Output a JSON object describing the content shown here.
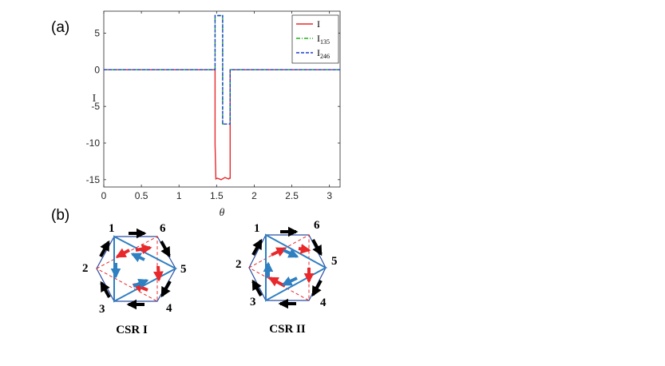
{
  "panel_a_label": "(a)",
  "panel_b_label": "(b)",
  "chart_data": {
    "type": "line",
    "title": "",
    "xlabel": "θ",
    "ylabel": "I",
    "xlim": [
      0,
      3.14159
    ],
    "ylim": [
      -16,
      8
    ],
    "x_ticks": [
      "0",
      "0.5",
      "1",
      "1.5",
      "2",
      "2.5",
      "3"
    ],
    "x_tick_values": [
      0,
      0.5,
      1,
      1.5,
      2,
      2.5,
      3
    ],
    "y_ticks": [
      "5",
      "0",
      "-5",
      "-10",
      "-15"
    ],
    "y_tick_values": [
      5,
      0,
      -5,
      -10,
      -15
    ],
    "legend_position": "top-right",
    "series": [
      {
        "name": "I",
        "name_main": "I",
        "name_sub": "",
        "color": "#e8282b",
        "dash": "solid",
        "x": [
          0,
          1.48,
          1.48,
          1.49,
          1.51,
          1.56,
          1.61,
          1.66,
          1.67,
          1.68,
          1.68,
          3.14159
        ],
        "y": [
          0,
          0,
          -10.2,
          -14.9,
          -14.8,
          -15.0,
          -14.7,
          -14.9,
          -14.8,
          -14.8,
          0,
          0
        ]
      },
      {
        "name": "I135",
        "name_main": "I",
        "name_sub": "135",
        "color": "#1fb21f",
        "dash": "dashdot",
        "x": [
          0,
          1.48,
          1.48,
          1.58,
          1.58,
          1.68,
          1.68,
          3.14159
        ],
        "y": [
          0,
          0,
          7.4,
          7.4,
          -7.4,
          -7.4,
          0,
          0
        ]
      },
      {
        "name": "I246",
        "name_main": "I",
        "name_sub": "246",
        "color": "#1f3fd6",
        "dash": "dashed",
        "x": [
          0,
          1.48,
          1.48,
          1.58,
          1.58,
          1.68,
          1.68,
          3.14159
        ],
        "y": [
          0,
          0,
          7.4,
          7.4,
          -7.4,
          -7.4,
          0,
          0
        ]
      }
    ]
  },
  "diagram": {
    "site_labels": [
      "1",
      "2",
      "3",
      "4",
      "5",
      "6"
    ],
    "captions": [
      "CSR I",
      "CSR II"
    ]
  }
}
